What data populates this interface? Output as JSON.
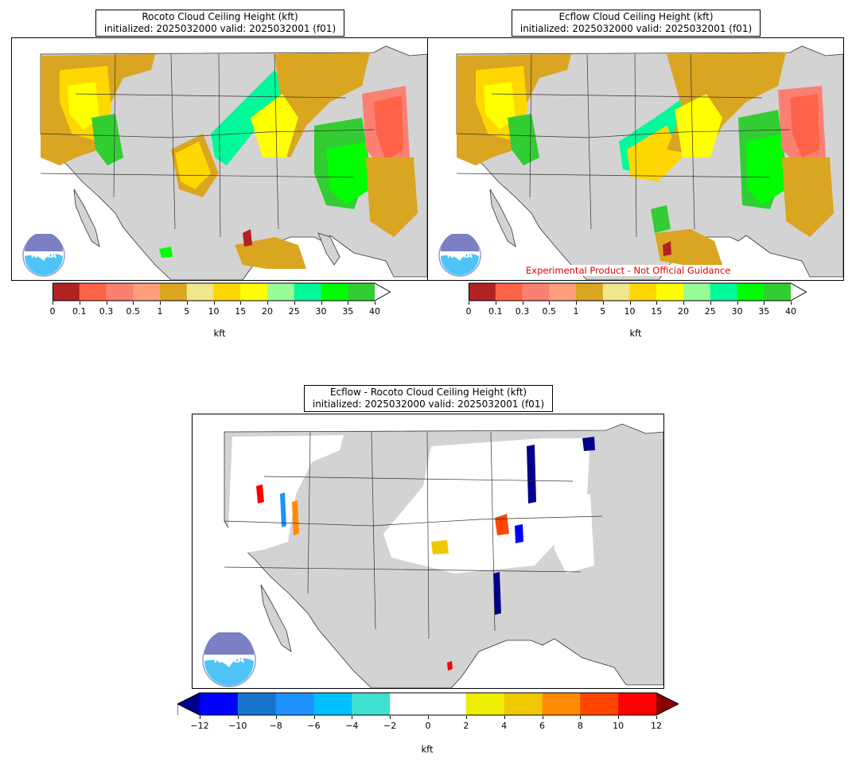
{
  "panels": {
    "rocoto": {
      "title_line1": "Rocoto Cloud Ceiling Height (kft)",
      "title_line2": "initialized: 2025032000 valid: 2025032001 (f01)"
    },
    "ecflow": {
      "title_line1": "Ecflow Cloud Ceiling Height (kft)",
      "title_line2": "initialized: 2025032000 valid: 2025032001 (f01)",
      "watermark": "Experimental Product - Not Official Guidance"
    },
    "diff": {
      "title_line1": "Ecflow - Rocoto Cloud Ceiling Height (kft)",
      "title_line2": "initialized: 2025032000 valid: 2025032001 (f01)"
    }
  },
  "logo": {
    "icon": "noaa-logo",
    "text": "NOAA"
  },
  "colorbar_ceiling": {
    "unit": "kft",
    "ticks": [
      "0",
      "0.1",
      "0.3",
      "0.5",
      "1",
      "5",
      "10",
      "15",
      "20",
      "25",
      "30",
      "35",
      "40"
    ],
    "colors": [
      "#b22222",
      "#ff6347",
      "#fa8072",
      "#ffa07a",
      "#daa520",
      "#f0e68c",
      "#ffd700",
      "#ffff00",
      "#98fb98",
      "#00fa9a",
      "#00ff00",
      "#32cd32"
    ],
    "extend": "max"
  },
  "colorbar_diff": {
    "unit": "kft",
    "ticks": [
      "−12",
      "−10",
      "−8",
      "−6",
      "−4",
      "−2",
      "0",
      "2",
      "4",
      "6",
      "8",
      "10",
      "12"
    ],
    "colors": [
      "#0000ff",
      "#1874cd",
      "#1e90ff",
      "#00bfff",
      "#40e0d0",
      "#ffffff",
      "#ffffff",
      "#eeee00",
      "#eec900",
      "#ff8c00",
      "#ff4500",
      "#ff0000"
    ],
    "under_color": "#00008b",
    "over_color": "#8b0000",
    "extend": "both"
  },
  "map_colors": {
    "land": "#d3d3d3",
    "ocean": "#ffffff",
    "borders": "#333333"
  }
}
